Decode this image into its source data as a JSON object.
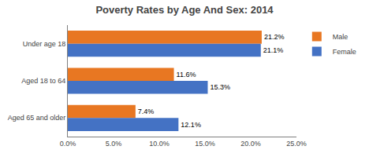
{
  "chart_data": {
    "type": "bar",
    "orientation": "horizontal",
    "title": "Poverty Rates by Age And Sex: 2014",
    "categories": [
      "Under age 18",
      "Aged 18 to 64",
      "Aged 65 and older"
    ],
    "series": [
      {
        "name": "Male",
        "color": "#E87722",
        "values": [
          21.2,
          11.6,
          7.4
        ],
        "value_labels": [
          "21.2%",
          "11.6%",
          "7.4%"
        ]
      },
      {
        "name": "Female",
        "color": "#4472C4",
        "values": [
          21.1,
          15.3,
          12.1
        ],
        "value_labels": [
          "21.1%",
          "15.3%",
          "12.1%"
        ]
      }
    ],
    "xlim": [
      0,
      25.0
    ],
    "xticks": [
      {
        "value": 0,
        "label": "0.0%"
      },
      {
        "value": 5,
        "label": "5.0%"
      },
      {
        "value": 10,
        "label": "10.0%"
      },
      {
        "value": 15,
        "label": "15.0%"
      },
      {
        "value": 20,
        "label": "20.0%"
      },
      {
        "value": 25,
        "label": "25.0%"
      }
    ],
    "data_labels": true,
    "grid": false,
    "legend": "right"
  }
}
